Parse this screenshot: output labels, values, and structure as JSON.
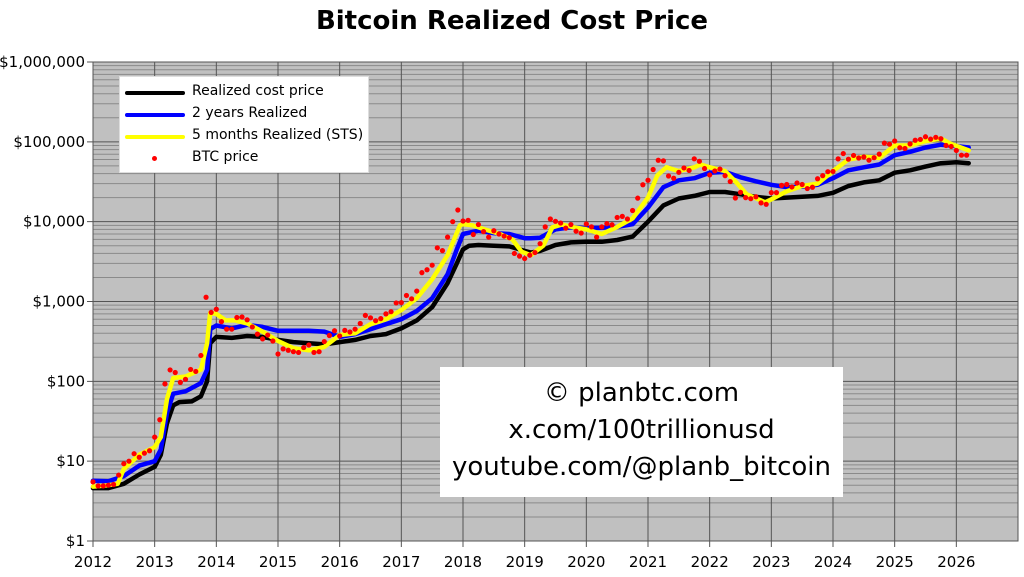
{
  "chart_data": {
    "type": "line",
    "title": "Bitcoin Realized Cost Price",
    "xlabel": "",
    "ylabel": "",
    "yscale": "log",
    "ylim": [
      1,
      1000000
    ],
    "xlim": [
      2012,
      2027
    ],
    "grid": true,
    "legend_placement": "top-left",
    "y_ticks": [
      {
        "value": 1,
        "label": "$1"
      },
      {
        "value": 10,
        "label": "$10"
      },
      {
        "value": 100,
        "label": "$100"
      },
      {
        "value": 1000,
        "label": "$1,000"
      },
      {
        "value": 10000,
        "label": "$10,000"
      },
      {
        "value": 100000,
        "label": "$100,000"
      },
      {
        "value": 1000000,
        "label": "$1,000,000"
      }
    ],
    "x_ticks": [
      {
        "value": 2012,
        "label": "2012"
      },
      {
        "value": 2013,
        "label": "2013"
      },
      {
        "value": 2014,
        "label": "2014"
      },
      {
        "value": 2015,
        "label": "2015"
      },
      {
        "value": 2016,
        "label": "2016"
      },
      {
        "value": 2017,
        "label": "2017"
      },
      {
        "value": 2018,
        "label": "2018"
      },
      {
        "value": 2019,
        "label": "2019"
      },
      {
        "value": 2020,
        "label": "2020"
      },
      {
        "value": 2021,
        "label": "2021"
      },
      {
        "value": 2022,
        "label": "2022"
      },
      {
        "value": 2023,
        "label": "2023"
      },
      {
        "value": 2024,
        "label": "2024"
      },
      {
        "value": 2025,
        "label": "2025"
      },
      {
        "value": 2026,
        "label": "2026"
      }
    ],
    "series": [
      {
        "name": "Realized cost price",
        "color": "#000000",
        "kind": "line",
        "points": [
          [
            2012.0,
            4.6
          ],
          [
            2012.25,
            4.6
          ],
          [
            2012.5,
            5.2
          ],
          [
            2012.75,
            6.8
          ],
          [
            2013.0,
            8.5
          ],
          [
            2013.1,
            12
          ],
          [
            2013.2,
            30
          ],
          [
            2013.3,
            50
          ],
          [
            2013.4,
            55
          ],
          [
            2013.6,
            56
          ],
          [
            2013.75,
            65
          ],
          [
            2013.85,
            100
          ],
          [
            2013.9,
            300
          ],
          [
            2014.0,
            360
          ],
          [
            2014.25,
            350
          ],
          [
            2014.5,
            370
          ],
          [
            2014.75,
            360
          ],
          [
            2015.0,
            330
          ],
          [
            2015.25,
            310
          ],
          [
            2015.5,
            300
          ],
          [
            2015.75,
            290
          ],
          [
            2016.0,
            310
          ],
          [
            2016.25,
            330
          ],
          [
            2016.5,
            370
          ],
          [
            2016.75,
            390
          ],
          [
            2017.0,
            460
          ],
          [
            2017.25,
            580
          ],
          [
            2017.5,
            850
          ],
          [
            2017.75,
            1700
          ],
          [
            2017.9,
            3000
          ],
          [
            2018.0,
            4500
          ],
          [
            2018.1,
            5000
          ],
          [
            2018.25,
            5100
          ],
          [
            2018.5,
            5000
          ],
          [
            2018.75,
            4900
          ],
          [
            2019.0,
            4300
          ],
          [
            2019.1,
            4100
          ],
          [
            2019.25,
            4300
          ],
          [
            2019.5,
            5100
          ],
          [
            2019.75,
            5500
          ],
          [
            2020.0,
            5600
          ],
          [
            2020.25,
            5600
          ],
          [
            2020.5,
            5900
          ],
          [
            2020.75,
            6500
          ],
          [
            2021.0,
            10000
          ],
          [
            2021.25,
            16000
          ],
          [
            2021.5,
            19500
          ],
          [
            2021.75,
            21000
          ],
          [
            2022.0,
            23500
          ],
          [
            2022.25,
            23500
          ],
          [
            2022.5,
            22000
          ],
          [
            2022.75,
            20500
          ],
          [
            2023.0,
            19500
          ],
          [
            2023.25,
            20000
          ],
          [
            2023.5,
            20500
          ],
          [
            2023.75,
            21000
          ],
          [
            2024.0,
            23000
          ],
          [
            2024.25,
            28000
          ],
          [
            2024.5,
            31000
          ],
          [
            2024.75,
            33000
          ],
          [
            2025.0,
            41000
          ],
          [
            2025.25,
            44000
          ],
          [
            2025.5,
            49000
          ],
          [
            2025.75,
            54000
          ],
          [
            2026.0,
            55500
          ],
          [
            2026.2,
            54000
          ]
        ]
      },
      {
        "name": "2 years Realized",
        "color": "#0000ff",
        "kind": "line",
        "points": [
          [
            2012.0,
            5.7
          ],
          [
            2012.25,
            5.6
          ],
          [
            2012.5,
            6.5
          ],
          [
            2012.75,
            8.8
          ],
          [
            2013.0,
            10
          ],
          [
            2013.1,
            14
          ],
          [
            2013.2,
            40
          ],
          [
            2013.3,
            70
          ],
          [
            2013.5,
            75
          ],
          [
            2013.75,
            95
          ],
          [
            2013.85,
            140
          ],
          [
            2013.9,
            450
          ],
          [
            2014.0,
            500
          ],
          [
            2014.25,
            460
          ],
          [
            2014.5,
            510
          ],
          [
            2014.75,
            480
          ],
          [
            2015.0,
            430
          ],
          [
            2015.5,
            430
          ],
          [
            2015.75,
            420
          ],
          [
            2016.0,
            360
          ],
          [
            2016.25,
            390
          ],
          [
            2016.5,
            450
          ],
          [
            2016.75,
            520
          ],
          [
            2017.0,
            600
          ],
          [
            2017.25,
            760
          ],
          [
            2017.5,
            1100
          ],
          [
            2017.75,
            2200
          ],
          [
            2017.9,
            4500
          ],
          [
            2018.0,
            7000
          ],
          [
            2018.25,
            7700
          ],
          [
            2018.5,
            7200
          ],
          [
            2018.75,
            7000
          ],
          [
            2019.0,
            6200
          ],
          [
            2019.1,
            6200
          ],
          [
            2019.25,
            6300
          ],
          [
            2019.5,
            8000
          ],
          [
            2019.75,
            8500
          ],
          [
            2020.0,
            8300
          ],
          [
            2020.25,
            8400
          ],
          [
            2020.5,
            8600
          ],
          [
            2020.75,
            9300
          ],
          [
            2021.0,
            15000
          ],
          [
            2021.25,
            27000
          ],
          [
            2021.5,
            33000
          ],
          [
            2021.75,
            35000
          ],
          [
            2022.0,
            41000
          ],
          [
            2022.25,
            42000
          ],
          [
            2022.5,
            36000
          ],
          [
            2022.75,
            32000
          ],
          [
            2023.0,
            29000
          ],
          [
            2023.25,
            27000
          ],
          [
            2023.5,
            27500
          ],
          [
            2023.75,
            29000
          ],
          [
            2024.0,
            35000
          ],
          [
            2024.25,
            44000
          ],
          [
            2024.5,
            48000
          ],
          [
            2024.75,
            52000
          ],
          [
            2025.0,
            68000
          ],
          [
            2025.25,
            75000
          ],
          [
            2025.5,
            85000
          ],
          [
            2025.75,
            92000
          ],
          [
            2025.9,
            90000
          ],
          [
            2026.2,
            85000
          ]
        ]
      },
      {
        "name": "5 months Realized (STS)",
        "color": "#ffff00",
        "kind": "line",
        "points": [
          [
            2012.0,
            4.8
          ],
          [
            2012.25,
            5
          ],
          [
            2012.4,
            5.2
          ],
          [
            2012.5,
            8
          ],
          [
            2012.75,
            12
          ],
          [
            2013.0,
            15
          ],
          [
            2013.1,
            20
          ],
          [
            2013.2,
            60
          ],
          [
            2013.3,
            110
          ],
          [
            2013.5,
            115
          ],
          [
            2013.75,
            140
          ],
          [
            2013.85,
            300
          ],
          [
            2013.9,
            720
          ],
          [
            2014.0,
            700
          ],
          [
            2014.15,
            580
          ],
          [
            2014.3,
            580
          ],
          [
            2014.5,
            530
          ],
          [
            2014.75,
            420
          ],
          [
            2015.0,
            320
          ],
          [
            2015.25,
            260
          ],
          [
            2015.5,
            245
          ],
          [
            2015.75,
            270
          ],
          [
            2016.0,
            380
          ],
          [
            2016.25,
            400
          ],
          [
            2016.5,
            520
          ],
          [
            2016.75,
            600
          ],
          [
            2017.0,
            780
          ],
          [
            2017.25,
            1100
          ],
          [
            2017.5,
            1900
          ],
          [
            2017.75,
            3800
          ],
          [
            2017.95,
            9000
          ],
          [
            2018.0,
            9300
          ],
          [
            2018.15,
            9000
          ],
          [
            2018.35,
            8000
          ],
          [
            2018.6,
            7000
          ],
          [
            2018.8,
            6000
          ],
          [
            2018.95,
            4200
          ],
          [
            2019.1,
            3800
          ],
          [
            2019.3,
            5000
          ],
          [
            2019.45,
            8500
          ],
          [
            2019.6,
            9200
          ],
          [
            2019.8,
            8500
          ],
          [
            2020.0,
            8000
          ],
          [
            2020.25,
            7000
          ],
          [
            2020.5,
            8600
          ],
          [
            2020.75,
            11000
          ],
          [
            2021.0,
            20000
          ],
          [
            2021.15,
            38000
          ],
          [
            2021.3,
            48000
          ],
          [
            2021.5,
            43000
          ],
          [
            2021.75,
            48000
          ],
          [
            2021.85,
            52000
          ],
          [
            2022.0,
            48000
          ],
          [
            2022.25,
            43000
          ],
          [
            2022.45,
            30000
          ],
          [
            2022.6,
            22000
          ],
          [
            2022.9,
            17500
          ],
          [
            2023.0,
            19000
          ],
          [
            2023.25,
            24000
          ],
          [
            2023.5,
            28000
          ],
          [
            2023.75,
            30000
          ],
          [
            2024.0,
            43000
          ],
          [
            2024.25,
            60000
          ],
          [
            2024.5,
            65000
          ],
          [
            2024.75,
            63000
          ],
          [
            2025.0,
            90000
          ],
          [
            2025.25,
            90000
          ],
          [
            2025.5,
            102000
          ],
          [
            2025.75,
            110000
          ],
          [
            2025.9,
            95000
          ],
          [
            2026.2,
            78000
          ]
        ]
      },
      {
        "name": "BTC price",
        "color": "#ff0000",
        "kind": "scatter",
        "start": 2012.0,
        "step_months": 1,
        "values": [
          5.5,
          4.9,
          4.9,
          5,
          5.1,
          6.7,
          9.3,
          10,
          12.4,
          11.2,
          12.6,
          13.5,
          20,
          33,
          93,
          139,
          129,
          97,
          106,
          141,
          133,
          211,
          1130,
          730,
          800,
          560,
          450,
          450,
          630,
          640,
          590,
          480,
          390,
          340,
          380,
          320,
          220,
          255,
          245,
          235,
          230,
          265,
          285,
          230,
          235,
          315,
          375,
          430,
          370,
          435,
          415,
          450,
          530,
          670,
          625,
          575,
          610,
          700,
          745,
          960,
          970,
          1190,
          1080,
          1350,
          2300,
          2500,
          2850,
          4700,
          4340,
          6400,
          10000,
          14000,
          10200,
          10400,
          6900,
          9200,
          7500,
          6400,
          7700,
          7000,
          6600,
          6300,
          4000,
          3700,
          3450,
          3800,
          4100,
          5300,
          8600,
          10800,
          10100,
          9600,
          8300,
          9200,
          7600,
          7200,
          9350,
          8600,
          6400,
          8600,
          9450,
          9140,
          11300,
          11650,
          10800,
          13800,
          19700,
          29000,
          33000,
          45000,
          58800,
          57700,
          37300,
          35000,
          41500,
          47100,
          43800,
          61300,
          57000,
          46300,
          38500,
          43200,
          45500,
          37700,
          31800,
          19800,
          23300,
          20000,
          19400,
          20500,
          17200,
          16500,
          23100,
          23100,
          28500,
          29200,
          27200,
          30500,
          29200,
          26000,
          27000,
          34500,
          37700,
          42300,
          42600,
          61200,
          71300,
          60600,
          67500,
          62700,
          64600,
          58900,
          63300,
          70200,
          96400,
          93400,
          102400,
          84400,
          82500,
          94200,
          104600,
          107100,
          115700,
          108200,
          114000,
          109500,
          90000,
          87500,
          78000,
          68000,
          68000
        ]
      }
    ]
  },
  "legend": {
    "items": [
      {
        "label": "Realized cost price",
        "color": "#000000"
      },
      {
        "label": "2 years Realized",
        "color": "#0000ff"
      },
      {
        "label": "5 months Realized (STS)",
        "color": "#ffff00"
      },
      {
        "label": "BTC price",
        "color": "#ff0000"
      }
    ]
  },
  "watermark": {
    "lines": [
      "© planbtc.com",
      "x.com/100trillionusd",
      "youtube.com/@planb_bitcoin"
    ]
  },
  "colors": {
    "plot_bg": "#c0c0c0",
    "major_grid": "#555555",
    "minor_grid": "#8a8a8a"
  }
}
